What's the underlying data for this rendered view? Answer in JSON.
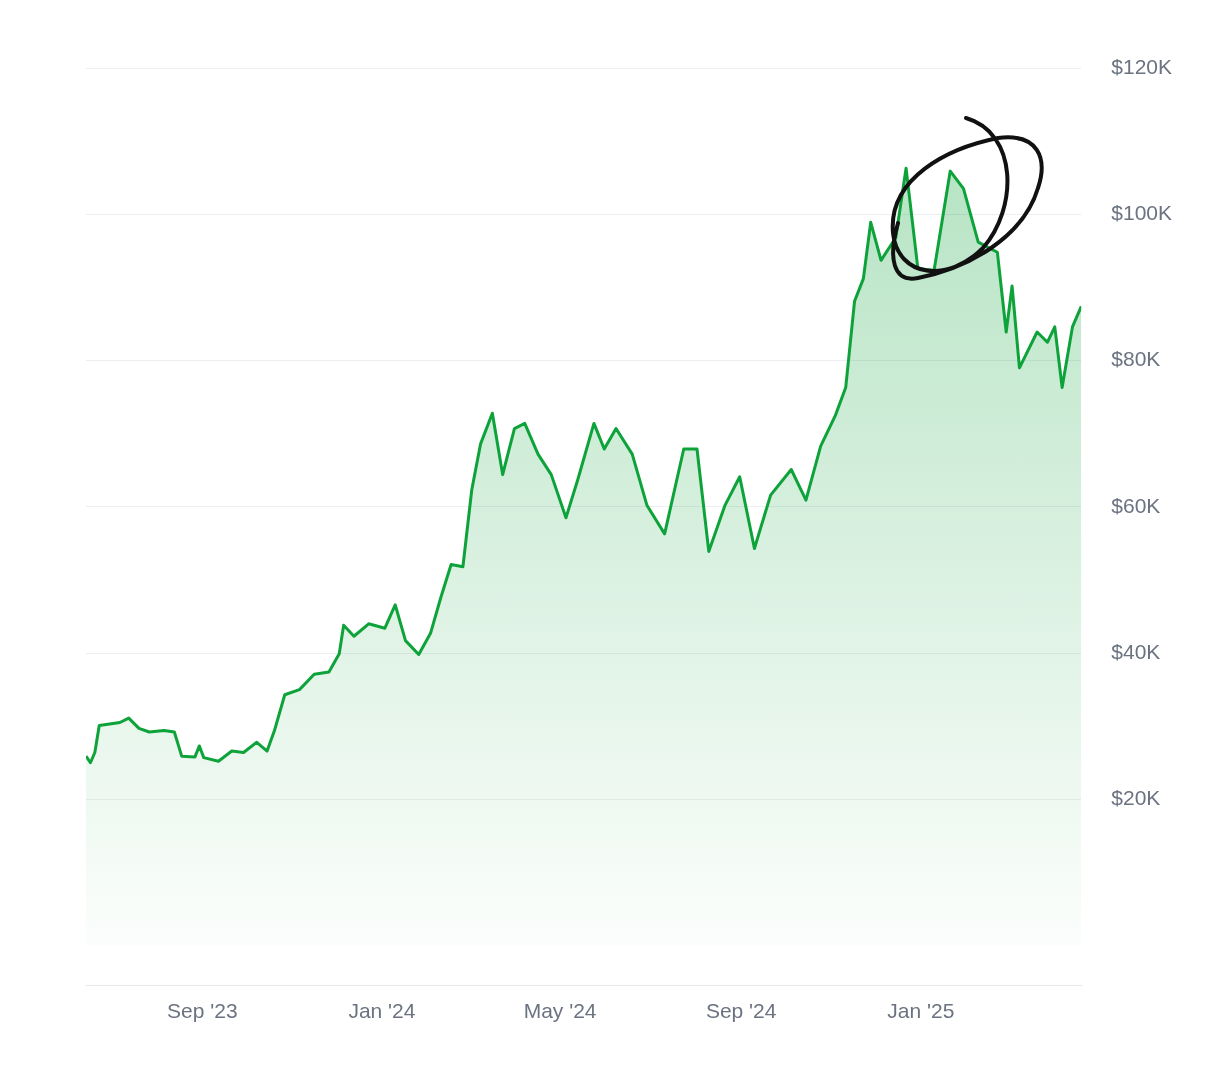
{
  "chart_data": {
    "type": "area",
    "x": [
      "2023-06-14",
      "2023-06-17",
      "2023-06-20",
      "2023-06-23",
      "2023-06-30",
      "2023-07-07",
      "2023-07-13",
      "2023-07-20",
      "2023-07-27",
      "2023-08-06",
      "2023-08-13",
      "2023-08-18",
      "2023-08-27",
      "2023-08-30",
      "2023-09-02",
      "2023-09-12",
      "2023-09-21",
      "2023-09-29",
      "2023-10-08",
      "2023-10-15",
      "2023-10-20",
      "2023-10-27",
      "2023-11-06",
      "2023-11-16",
      "2023-11-26",
      "2023-12-03",
      "2023-12-06",
      "2023-12-13",
      "2023-12-23",
      "2024-01-03",
      "2024-01-10",
      "2024-01-17",
      "2024-01-26",
      "2024-02-03",
      "2024-02-10",
      "2024-02-17",
      "2024-02-25",
      "2024-03-02",
      "2024-03-08",
      "2024-03-16",
      "2024-03-23",
      "2024-03-31",
      "2024-04-07",
      "2024-04-16",
      "2024-04-25",
      "2024-05-05",
      "2024-05-13",
      "2024-05-24",
      "2024-05-31",
      "2024-06-08",
      "2024-06-19",
      "2024-06-29",
      "2024-07-11",
      "2024-07-24",
      "2024-08-02",
      "2024-08-10",
      "2024-08-21",
      "2024-08-31",
      "2024-09-10",
      "2024-09-21",
      "2024-10-05",
      "2024-10-15",
      "2024-10-25",
      "2024-11-04",
      "2024-11-11",
      "2024-11-17",
      "2024-11-23",
      "2024-11-28",
      "2024-12-05",
      "2024-12-15",
      "2024-12-22",
      "2024-12-30",
      "2025-01-10",
      "2025-01-21",
      "2025-01-30",
      "2025-02-09",
      "2025-02-22",
      "2025-02-28",
      "2025-03-04",
      "2025-03-09",
      "2025-03-21",
      "2025-03-28",
      "2025-04-02",
      "2025-04-07",
      "2025-04-14",
      "2025-04-20"
    ],
    "series": [
      {
        "color": "#0ea33a",
        "values": [
          25.9,
          25.0,
          26.4,
          30.1,
          30.3,
          30.5,
          31.1,
          29.7,
          29.2,
          29.4,
          29.2,
          25.9,
          25.8,
          27.3,
          25.7,
          25.2,
          26.6,
          26.4,
          27.8,
          26.6,
          29.4,
          34.3,
          35.0,
          37.1,
          37.4,
          39.9,
          43.8,
          42.3,
          44.0,
          43.4,
          46.6,
          41.7,
          39.8,
          42.7,
          47.6,
          52.1,
          51.8,
          62.3,
          68.6,
          72.8,
          64.4,
          70.7,
          71.4,
          67.2,
          64.4,
          58.5,
          63.7,
          71.4,
          67.9,
          70.7,
          67.2,
          60.2,
          56.3,
          67.9,
          67.9,
          53.9,
          60.2,
          64.1,
          54.3,
          61.6,
          65.1,
          60.9,
          68.3,
          72.5,
          76.3,
          88.1,
          91.2,
          98.9,
          93.7,
          96.8,
          106.3,
          92.6,
          92.3,
          105.9,
          103.5,
          96.2,
          94.8,
          83.9,
          90.2,
          79.0,
          83.9,
          82.5,
          84.6,
          76.3,
          84.6,
          87.4
        ]
      }
    ],
    "xlim": [
      "2023-06-14",
      "2025-04-20"
    ],
    "xticks": [
      {
        "value": "2023-09-01",
        "label": "Sep '23"
      },
      {
        "value": "2024-01-01",
        "label": "Jan '24"
      },
      {
        "value": "2024-05-01",
        "label": "May '24"
      },
      {
        "value": "2024-09-01",
        "label": "Sep '24"
      },
      {
        "value": "2025-01-01",
        "label": "Jan '25"
      }
    ],
    "ylim": [
      -5.5,
      120
    ],
    "yticks": [
      {
        "value": 20,
        "label": "$20K"
      },
      {
        "value": 40,
        "label": "$40K"
      },
      {
        "value": 60,
        "label": "$60K"
      },
      {
        "value": 80,
        "label": "$80K"
      },
      {
        "value": 100,
        "label": "$100K"
      },
      {
        "value": 120,
        "label": "$120K"
      }
    ],
    "grid": "y",
    "legend": false,
    "marker": "none",
    "line_style": "solid"
  }
}
